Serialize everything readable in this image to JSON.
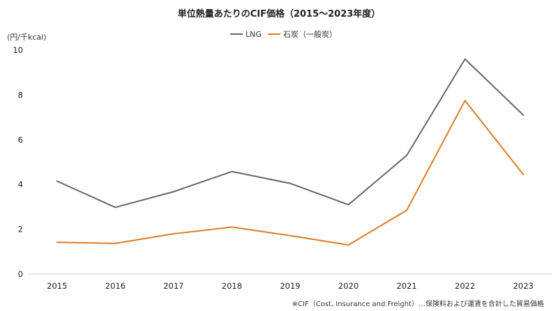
{
  "chart_data": {
    "type": "line",
    "title": "単位熱量あたりのCIF価格（2015〜2023年度）",
    "ylabel": "(円/千kcal)",
    "xlabel": "",
    "x": [
      "2015",
      "2016",
      "2017",
      "2018",
      "2019",
      "2020",
      "2021",
      "2022",
      "2023"
    ],
    "ylim": [
      0,
      10
    ],
    "yticks": [
      0,
      2,
      4,
      6,
      8,
      10
    ],
    "grid": false,
    "legend_position": "top-center",
    "series": [
      {
        "name": "LNG",
        "color": "#666666",
        "values": [
          4.15,
          2.98,
          3.68,
          4.58,
          4.05,
          3.1,
          5.3,
          9.6,
          7.1
        ]
      },
      {
        "name": "石炭（一般炭）",
        "color": "#E07B21",
        "values": [
          1.42,
          1.37,
          1.8,
          2.1,
          1.72,
          1.3,
          2.85,
          7.75,
          4.45
        ]
      }
    ],
    "footnote": "※CIF（Cost, Insurance and Freight）…保険料および運賃を合計した貿易価格"
  }
}
